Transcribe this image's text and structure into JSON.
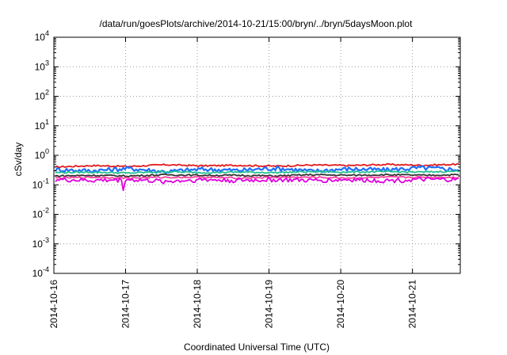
{
  "chart_data": {
    "type": "line",
    "title": "/data/run/goesPlots/archive/2014-10-21/15:00/bryn/../bryn/5daysMoon.plot",
    "xlabel": "Coordinated Universal Time (UTC)",
    "ylabel": "cSv/day",
    "yscale": "log",
    "ylim_exp": [
      -4,
      4
    ],
    "y_ticks": [
      {
        "base": "10",
        "exp": "4"
      },
      {
        "base": "10",
        "exp": "3"
      },
      {
        "base": "10",
        "exp": "2"
      },
      {
        "base": "10",
        "exp": "1"
      },
      {
        "base": "10",
        "exp": "0"
      },
      {
        "base": "10",
        "exp": "-1"
      },
      {
        "base": "10",
        "exp": "-2"
      },
      {
        "base": "10",
        "exp": "-3"
      },
      {
        "base": "10",
        "exp": "-4"
      }
    ],
    "x_ticks": [
      "2014-10-16",
      "2014-10-17",
      "2014-10-18",
      "2014-10-19",
      "2014-10-20",
      "2014-10-21"
    ],
    "xlim": [
      "2014-10-16T00:00",
      "2014-10-21T16:00"
    ],
    "grid": true,
    "series": [
      {
        "color": "#e41a1c",
        "values": [
          0.4,
          0.45,
          0.42,
          0.48,
          0.44,
          0.46,
          0.43,
          0.47,
          0.45,
          0.49,
          0.46,
          0.5
        ]
      },
      {
        "color": "#1e6fff",
        "values": [
          0.33,
          0.3,
          0.36,
          0.28,
          0.34,
          0.31,
          0.37,
          0.29,
          0.35,
          0.32,
          0.38,
          0.33
        ]
      },
      {
        "color": "#20c090",
        "values": [
          0.26,
          0.27,
          0.25,
          0.28,
          0.26,
          0.27,
          0.26,
          0.28,
          0.27,
          0.28,
          0.27,
          0.29
        ]
      },
      {
        "color": "#333333",
        "values": [
          0.2,
          0.21,
          0.2,
          0.22,
          0.21,
          0.21,
          0.2,
          0.22,
          0.21,
          0.22,
          0.21,
          0.22
        ]
      },
      {
        "color": "#ff40a0",
        "values": [
          0.17,
          0.18,
          0.17,
          0.18,
          0.18,
          0.17,
          0.18,
          0.18,
          0.17,
          0.18,
          0.18,
          0.18
        ]
      },
      {
        "color": "#e000e0",
        "values": [
          0.15,
          0.14,
          0.15,
          0.13,
          0.15,
          0.14,
          0.15,
          0.14,
          0.15,
          0.14,
          0.15,
          0.15
        ]
      }
    ]
  }
}
